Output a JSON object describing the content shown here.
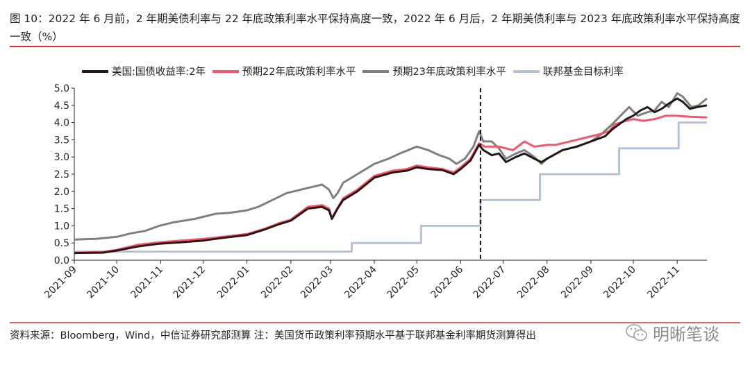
{
  "title": "图 10：2022 年 6 月前，2 年期美债利率与 22 年底政策利率水平保持高度一致，2022 年 6 月后，2 年期美债利率与 2023 年底政策利率水平保持高度一致（%）",
  "source": "资料来源：Bloomberg，Wind，中信证券研究部测算  注：美国货币政策利率预期水平基于联邦基金利率期货测算得出",
  "watermark": "明晰笔谈",
  "colors": {
    "ust2y": "#231815",
    "exp22": "#f4566b",
    "exp23": "#7f7f7f",
    "fed": "#b4c2d3",
    "rule": "#d9313a"
  },
  "chart_data": {
    "type": "line",
    "title": "",
    "xlabel": "",
    "ylabel": "",
    "x_unit": "days since 2021-09-01",
    "xlim": [
      0,
      447
    ],
    "ylim": [
      0,
      5.0
    ],
    "yticks": [
      "0.0",
      "0.5",
      "1.0",
      "1.5",
      "2.0",
      "2.5",
      "3.0",
      "3.5",
      "4.0",
      "4.5",
      "5.0"
    ],
    "xticks": [
      {
        "label": "2021-09",
        "day": 0
      },
      {
        "label": "2021-10",
        "day": 30
      },
      {
        "label": "2021-11",
        "day": 61
      },
      {
        "label": "2021-12",
        "day": 91
      },
      {
        "label": "2022-01",
        "day": 122
      },
      {
        "label": "2022-02",
        "day": 153
      },
      {
        "label": "2022-03",
        "day": 181
      },
      {
        "label": "2022-04",
        "day": 212
      },
      {
        "label": "2022-05",
        "day": 242
      },
      {
        "label": "2022-06",
        "day": 273
      },
      {
        "label": "2022-07",
        "day": 303
      },
      {
        "label": "2022-08",
        "day": 334
      },
      {
        "label": "2022-09",
        "day": 365
      },
      {
        "label": "2022-10",
        "day": 395
      },
      {
        "label": "2022-11",
        "day": 426
      }
    ],
    "vline_day": 287,
    "legend_position": "top",
    "series": [
      {
        "name": "美国:国债收益率:2年",
        "key": "ust2y",
        "points": [
          [
            0,
            0.21
          ],
          [
            20,
            0.22
          ],
          [
            30,
            0.28
          ],
          [
            45,
            0.4
          ],
          [
            60,
            0.48
          ],
          [
            75,
            0.52
          ],
          [
            91,
            0.57
          ],
          [
            105,
            0.65
          ],
          [
            122,
            0.73
          ],
          [
            135,
            0.9
          ],
          [
            145,
            1.05
          ],
          [
            153,
            1.15
          ],
          [
            165,
            1.5
          ],
          [
            175,
            1.55
          ],
          [
            180,
            1.45
          ],
          [
            182,
            1.2
          ],
          [
            186,
            1.5
          ],
          [
            190,
            1.75
          ],
          [
            200,
            2.0
          ],
          [
            212,
            2.4
          ],
          [
            225,
            2.55
          ],
          [
            235,
            2.6
          ],
          [
            242,
            2.7
          ],
          [
            250,
            2.65
          ],
          [
            260,
            2.62
          ],
          [
            268,
            2.5
          ],
          [
            273,
            2.65
          ],
          [
            280,
            2.9
          ],
          [
            286,
            3.35
          ],
          [
            289,
            3.2
          ],
          [
            295,
            3.05
          ],
          [
            300,
            3.1
          ],
          [
            305,
            2.85
          ],
          [
            312,
            3.0
          ],
          [
            318,
            3.1
          ],
          [
            325,
            2.95
          ],
          [
            330,
            2.85
          ],
          [
            334,
            2.95
          ],
          [
            345,
            3.2
          ],
          [
            355,
            3.3
          ],
          [
            365,
            3.45
          ],
          [
            375,
            3.6
          ],
          [
            380,
            3.8
          ],
          [
            390,
            4.1
          ],
          [
            395,
            4.2
          ],
          [
            400,
            4.35
          ],
          [
            405,
            4.45
          ],
          [
            410,
            4.3
          ],
          [
            415,
            4.4
          ],
          [
            420,
            4.55
          ],
          [
            426,
            4.7
          ],
          [
            430,
            4.6
          ],
          [
            435,
            4.4
          ],
          [
            440,
            4.45
          ],
          [
            447,
            4.5
          ]
        ]
      },
      {
        "name": "预期22年底政策利率水平",
        "key": "exp22",
        "points": [
          [
            0,
            0.22
          ],
          [
            20,
            0.24
          ],
          [
            30,
            0.3
          ],
          [
            45,
            0.45
          ],
          [
            60,
            0.52
          ],
          [
            75,
            0.57
          ],
          [
            91,
            0.62
          ],
          [
            105,
            0.68
          ],
          [
            122,
            0.76
          ],
          [
            135,
            0.92
          ],
          [
            145,
            1.08
          ],
          [
            153,
            1.18
          ],
          [
            165,
            1.55
          ],
          [
            175,
            1.6
          ],
          [
            180,
            1.5
          ],
          [
            182,
            1.22
          ],
          [
            186,
            1.52
          ],
          [
            190,
            1.8
          ],
          [
            200,
            2.05
          ],
          [
            212,
            2.45
          ],
          [
            225,
            2.6
          ],
          [
            235,
            2.65
          ],
          [
            242,
            2.75
          ],
          [
            250,
            2.7
          ],
          [
            260,
            2.65
          ],
          [
            268,
            2.55
          ],
          [
            273,
            2.7
          ],
          [
            280,
            2.95
          ],
          [
            286,
            3.4
          ],
          [
            290,
            3.3
          ],
          [
            300,
            3.3
          ],
          [
            310,
            3.2
          ],
          [
            318,
            3.45
          ],
          [
            325,
            3.3
          ],
          [
            334,
            3.35
          ],
          [
            340,
            3.35
          ],
          [
            350,
            3.45
          ],
          [
            360,
            3.55
          ],
          [
            370,
            3.65
          ],
          [
            378,
            3.75
          ],
          [
            382,
            3.95
          ],
          [
            390,
            4.05
          ],
          [
            395,
            4.1
          ],
          [
            402,
            4.05
          ],
          [
            410,
            4.1
          ],
          [
            418,
            4.2
          ],
          [
            425,
            4.2
          ],
          [
            435,
            4.17
          ],
          [
            447,
            4.15
          ]
        ]
      },
      {
        "name": "预期23年底政策利率水平",
        "key": "exp23",
        "points": [
          [
            0,
            0.6
          ],
          [
            15,
            0.62
          ],
          [
            30,
            0.68
          ],
          [
            40,
            0.78
          ],
          [
            50,
            0.85
          ],
          [
            60,
            1.0
          ],
          [
            70,
            1.1
          ],
          [
            85,
            1.2
          ],
          [
            100,
            1.35
          ],
          [
            110,
            1.38
          ],
          [
            122,
            1.45
          ],
          [
            130,
            1.55
          ],
          [
            140,
            1.75
          ],
          [
            150,
            1.95
          ],
          [
            160,
            2.05
          ],
          [
            170,
            2.15
          ],
          [
            175,
            2.2
          ],
          [
            180,
            2.05
          ],
          [
            183,
            1.8
          ],
          [
            186,
            1.95
          ],
          [
            190,
            2.25
          ],
          [
            200,
            2.5
          ],
          [
            212,
            2.8
          ],
          [
            222,
            2.95
          ],
          [
            230,
            3.1
          ],
          [
            242,
            3.3
          ],
          [
            250,
            3.2
          ],
          [
            258,
            3.05
          ],
          [
            265,
            2.95
          ],
          [
            270,
            2.8
          ],
          [
            276,
            2.95
          ],
          [
            282,
            3.3
          ],
          [
            286,
            3.75
          ],
          [
            289,
            3.45
          ],
          [
            295,
            3.45
          ],
          [
            300,
            3.25
          ],
          [
            305,
            2.95
          ],
          [
            312,
            3.1
          ],
          [
            318,
            3.2
          ],
          [
            325,
            3.0
          ],
          [
            330,
            2.8
          ],
          [
            334,
            2.95
          ],
          [
            345,
            3.2
          ],
          [
            355,
            3.3
          ],
          [
            365,
            3.45
          ],
          [
            372,
            3.65
          ],
          [
            380,
            3.95
          ],
          [
            386,
            4.2
          ],
          [
            392,
            4.45
          ],
          [
            398,
            4.2
          ],
          [
            405,
            4.3
          ],
          [
            410,
            4.35
          ],
          [
            415,
            4.6
          ],
          [
            420,
            4.45
          ],
          [
            426,
            4.85
          ],
          [
            430,
            4.75
          ],
          [
            436,
            4.45
          ],
          [
            441,
            4.5
          ],
          [
            447,
            4.7
          ]
        ]
      },
      {
        "name": "联邦基金目标利率",
        "key": "fed",
        "points": [
          [
            0,
            0.25
          ],
          [
            196,
            0.25
          ],
          [
            196,
            0.5
          ],
          [
            245,
            0.5
          ],
          [
            245,
            1.0
          ],
          [
            287,
            1.0
          ],
          [
            287,
            1.75
          ],
          [
            329,
            1.75
          ],
          [
            329,
            2.5
          ],
          [
            385,
            2.5
          ],
          [
            385,
            3.25
          ],
          [
            427,
            3.25
          ],
          [
            427,
            4.0
          ],
          [
            447,
            4.0
          ]
        ]
      }
    ]
  }
}
